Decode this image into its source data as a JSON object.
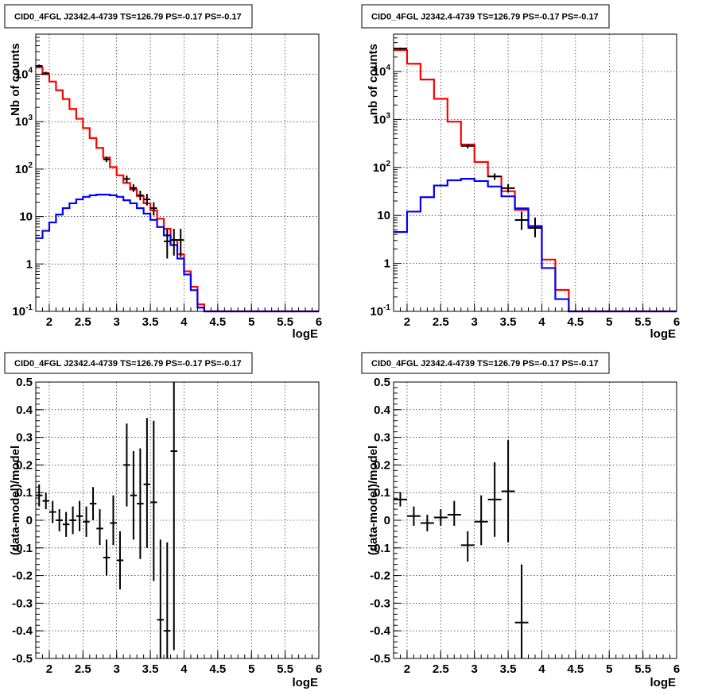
{
  "chart_data": [
    {
      "type": "line",
      "title": "CID0_4FGL J2342.4-4739 TS=126.79 PS=-0.17 PS=-0.17",
      "xlabel": "logE",
      "ylabel": "Nb of counts",
      "yscale": "log",
      "xlim": [
        1.8,
        6
      ],
      "ylim": [
        0.1,
        70000
      ],
      "xticks": [
        "2",
        "2.5",
        "3",
        "3.5",
        "4",
        "4.5",
        "5",
        "5.5",
        "6"
      ],
      "yticks": [
        "10^-1",
        "1",
        "10",
        "10^2",
        "10^3",
        "10^4"
      ],
      "grid": true,
      "bin_edges": [
        1.8,
        1.9,
        2.0,
        2.1,
        2.2,
        2.3,
        2.4,
        2.5,
        2.6,
        2.7,
        2.8,
        2.9,
        3.0,
        3.1,
        3.2,
        3.3,
        3.4,
        3.5,
        3.6,
        3.7,
        3.8,
        3.9,
        4.0,
        4.1,
        4.2,
        4.3,
        4.4,
        4.5,
        4.6,
        4.7,
        4.8,
        4.9,
        5.0,
        5.1,
        5.2,
        5.3,
        5.4,
        5.5,
        5.6,
        5.7,
        5.8,
        5.9,
        6.0
      ],
      "series": [
        {
          "color": "#ff0000",
          "style": "step",
          "values": [
            14000,
            10000,
            7000,
            4600,
            3000,
            1850,
            1150,
            730,
            450,
            280,
            175,
            110,
            74,
            51,
            37,
            27,
            19,
            13.5,
            9,
            5.5,
            3.2,
            1.6,
            0.7,
            0.33,
            0.14,
            0.1,
            0.1,
            0.1,
            0.1,
            0.1,
            0.1,
            0.1,
            0.1,
            0.1,
            0.1,
            0.1,
            0.1,
            0.1,
            0.1,
            0.1,
            0.1,
            0.1
          ]
        },
        {
          "color": "#0000ff",
          "style": "step",
          "values": [
            3.5,
            5,
            7.5,
            11,
            15,
            19,
            23,
            26,
            28,
            29,
            29,
            28,
            26,
            22,
            19,
            15,
            11.5,
            8.5,
            6,
            4,
            2.5,
            1.3,
            0.6,
            0.28,
            0.12,
            0.1,
            0.1,
            0.1,
            0.1,
            0.1,
            0.1,
            0.1,
            0.1,
            0.1,
            0.1,
            0.1,
            0.1,
            0.1,
            0.1,
            0.1,
            0.1,
            0.1
          ]
        },
        {
          "color": "#000000",
          "style": "errorbars",
          "points": [
            {
              "x": 1.85,
              "y": 15000,
              "lo": 14000,
              "hi": 16000
            },
            {
              "x": 1.95,
              "y": 10500,
              "lo": 9800,
              "hi": 11300
            },
            {
              "x": 2.85,
              "y": 160,
              "lo": 140,
              "hi": 180
            },
            {
              "x": 3.15,
              "y": 62,
              "lo": 52,
              "hi": 73
            },
            {
              "x": 3.25,
              "y": 40,
              "lo": 33,
              "hi": 48
            },
            {
              "x": 3.35,
              "y": 28,
              "lo": 22,
              "hi": 35
            },
            {
              "x": 3.45,
              "y": 23,
              "lo": 17,
              "hi": 30
            },
            {
              "x": 3.55,
              "y": 15,
              "lo": 10.5,
              "hi": 20
            },
            {
              "x": 3.75,
              "y": 3,
              "lo": 1.3,
              "hi": 5.5
            },
            {
              "x": 3.85,
              "y": 3.2,
              "lo": 1.5,
              "hi": 5.5
            },
            {
              "x": 3.95,
              "y": 3.2,
              "lo": 1.4,
              "hi": 5.5
            }
          ]
        }
      ]
    },
    {
      "type": "line",
      "title": "CID0_4FGL J2342.4-4739 TS=126.79 PS=-0.17 PS=-0.17",
      "xlabel": "logE",
      "ylabel": "nb of counts",
      "yscale": "log",
      "xlim": [
        1.8,
        6
      ],
      "ylim": [
        0.1,
        60000
      ],
      "xticks": [
        "2",
        "2.5",
        "3",
        "3.5",
        "4",
        "4.5",
        "5",
        "5.5",
        "6"
      ],
      "yticks": [
        "10^-1",
        "1",
        "10",
        "10^2",
        "10^3",
        "10^4"
      ],
      "grid": true,
      "bin_edges": [
        1.8,
        2.0,
        2.2,
        2.4,
        2.6,
        2.8,
        3.0,
        3.2,
        3.4,
        3.6,
        3.8,
        4.0,
        4.2,
        4.4,
        4.6,
        4.8,
        5.0,
        5.2,
        5.4,
        5.6,
        5.8,
        6.0
      ],
      "series": [
        {
          "color": "#ff0000",
          "style": "step",
          "values": [
            28000,
            14500,
            6800,
            2700,
            900,
            300,
            130,
            65,
            32,
            13,
            5.5,
            1.2,
            0.28,
            0.1,
            0.1,
            0.1,
            0.1,
            0.1,
            0.1,
            0.1,
            0.1
          ]
        },
        {
          "color": "#0000ff",
          "style": "step",
          "values": [
            4.5,
            12,
            24,
            42,
            54,
            58,
            52,
            40,
            25,
            14,
            6,
            0.8,
            0.18,
            0.1,
            0.1,
            0.1,
            0.1,
            0.1,
            0.1,
            0.1,
            0.1
          ]
        },
        {
          "color": "#000000",
          "style": "errorbars",
          "points": [
            {
              "x": 1.9,
              "y": 30000,
              "lo": 28500,
              "hi": 31500
            },
            {
              "x": 2.9,
              "y": 280,
              "lo": 250,
              "hi": 310
            },
            {
              "x": 3.3,
              "y": 65,
              "lo": 55,
              "hi": 75
            },
            {
              "x": 3.5,
              "y": 37,
              "lo": 30,
              "hi": 45
            },
            {
              "x": 3.7,
              "y": 8,
              "lo": 5,
              "hi": 12
            },
            {
              "x": 3.9,
              "y": 5.5,
              "lo": 3.5,
              "hi": 9
            }
          ]
        }
      ]
    },
    {
      "type": "scatter",
      "title": "CID0_4FGL J2342.4-4739 TS=126.79 PS=-0.17 PS=-0.17",
      "xlabel": "logE",
      "ylabel": "(data-model)/model",
      "xlim": [
        1.8,
        6
      ],
      "ylim": [
        -0.5,
        0.5
      ],
      "xticks": [
        "2",
        "2.5",
        "3",
        "3.5",
        "4",
        "4.5",
        "5",
        "5.5",
        "6"
      ],
      "yticks": [
        "-0.5",
        "-0.4",
        "-0.3",
        "-0.2",
        "-0.1",
        "0",
        "0.1",
        "0.2",
        "0.3",
        "0.4",
        "0.5"
      ],
      "grid": true,
      "xerr": 0.05,
      "series": [
        {
          "color": "#000000",
          "style": "errorbars",
          "points": [
            {
              "x": 1.85,
              "y": 0.09,
              "lo": 0.05,
              "hi": 0.13
            },
            {
              "x": 1.95,
              "y": 0.07,
              "lo": 0.04,
              "hi": 0.1
            },
            {
              "x": 2.05,
              "y": 0.03,
              "lo": -0.01,
              "hi": 0.07
            },
            {
              "x": 2.15,
              "y": 0.0,
              "lo": -0.04,
              "hi": 0.04
            },
            {
              "x": 2.25,
              "y": -0.015,
              "lo": -0.06,
              "hi": 0.03
            },
            {
              "x": 2.35,
              "y": 0.0,
              "lo": -0.05,
              "hi": 0.05
            },
            {
              "x": 2.45,
              "y": 0.015,
              "lo": -0.04,
              "hi": 0.07
            },
            {
              "x": 2.55,
              "y": -0.005,
              "lo": -0.06,
              "hi": 0.05
            },
            {
              "x": 2.65,
              "y": 0.06,
              "lo": 0.0,
              "hi": 0.12
            },
            {
              "x": 2.75,
              "y": -0.03,
              "lo": -0.09,
              "hi": 0.04
            },
            {
              "x": 2.85,
              "y": -0.135,
              "lo": -0.2,
              "hi": -0.07
            },
            {
              "x": 2.95,
              "y": -0.01,
              "lo": -0.09,
              "hi": 0.09
            },
            {
              "x": 3.05,
              "y": -0.145,
              "lo": -0.25,
              "hi": -0.04
            },
            {
              "x": 3.15,
              "y": 0.2,
              "lo": 0.05,
              "hi": 0.35
            },
            {
              "x": 3.25,
              "y": 0.09,
              "lo": -0.07,
              "hi": 0.25
            },
            {
              "x": 3.35,
              "y": 0.06,
              "lo": -0.14,
              "hi": 0.26
            },
            {
              "x": 3.45,
              "y": 0.13,
              "lo": -0.1,
              "hi": 0.37
            },
            {
              "x": 3.55,
              "y": 0.065,
              "lo": -0.22,
              "hi": 0.36
            },
            {
              "x": 3.65,
              "y": -0.36,
              "lo": -0.5,
              "hi": -0.07
            },
            {
              "x": 3.75,
              "y": -0.4,
              "lo": -0.5,
              "hi": -0.08
            },
            {
              "x": 3.85,
              "y": 0.25,
              "lo": -0.47,
              "hi": 0.5
            }
          ]
        }
      ]
    },
    {
      "type": "scatter",
      "title": "CID0_4FGL J2342.4-4739 TS=126.79 PS=-0.17 PS=-0.17",
      "xlabel": "logE",
      "ylabel": "(data-model)/model",
      "xlim": [
        1.8,
        6
      ],
      "ylim": [
        -0.5,
        0.5
      ],
      "xticks": [
        "2",
        "2.5",
        "3",
        "3.5",
        "4",
        "4.5",
        "5",
        "5.5",
        "6"
      ],
      "yticks": [
        "-0.5",
        "-0.4",
        "-0.3",
        "-0.2",
        "-0.1",
        "0",
        "0.1",
        "0.2",
        "0.3",
        "0.4",
        "0.5"
      ],
      "grid": true,
      "xerr": 0.1,
      "series": [
        {
          "color": "#000000",
          "style": "errorbars",
          "points": [
            {
              "x": 1.9,
              "y": 0.075,
              "lo": 0.05,
              "hi": 0.1
            },
            {
              "x": 2.1,
              "y": 0.015,
              "lo": -0.02,
              "hi": 0.05
            },
            {
              "x": 2.3,
              "y": -0.01,
              "lo": -0.04,
              "hi": 0.02
            },
            {
              "x": 2.5,
              "y": 0.01,
              "lo": -0.02,
              "hi": 0.04
            },
            {
              "x": 2.7,
              "y": 0.02,
              "lo": -0.02,
              "hi": 0.07
            },
            {
              "x": 2.9,
              "y": -0.09,
              "lo": -0.15,
              "hi": -0.04
            },
            {
              "x": 3.1,
              "y": -0.005,
              "lo": -0.09,
              "hi": 0.09
            },
            {
              "x": 3.3,
              "y": 0.075,
              "lo": -0.06,
              "hi": 0.21
            },
            {
              "x": 3.5,
              "y": 0.105,
              "lo": -0.08,
              "hi": 0.29
            },
            {
              "x": 3.7,
              "y": -0.37,
              "lo": -0.5,
              "hi": -0.16
            }
          ]
        }
      ]
    }
  ]
}
